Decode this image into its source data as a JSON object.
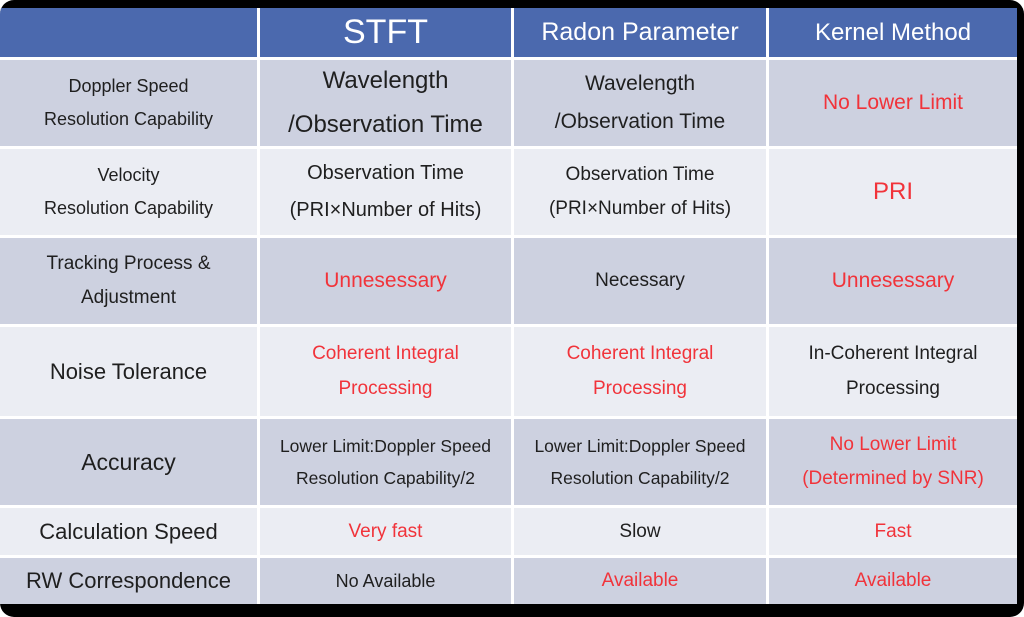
{
  "colors": {
    "header_blue": "#4b69ae",
    "band_dark": "#cdd1e0",
    "band_light": "#ebedf3",
    "text_dark": "#1f1f1f",
    "accent_red": "#f1333a",
    "frame_black": "#000000"
  },
  "header": {
    "corner": "",
    "stft": "STFT",
    "radon": "Radon Parameter",
    "kernel": "Kernel Method"
  },
  "rows": [
    {
      "label": [
        "Doppler Speed",
        "Resolution Capability"
      ],
      "stft": {
        "lines": [
          "Wavelength",
          "/Observation Time"
        ],
        "tone": "dark"
      },
      "radon": {
        "lines": [
          "Wavelength",
          "/Observation Time"
        ],
        "tone": "dark"
      },
      "kernel": {
        "lines": [
          "No Lower Limit"
        ],
        "tone": "red"
      }
    },
    {
      "label": [
        "Velocity",
        "Resolution Capability"
      ],
      "stft": {
        "lines": [
          "Observation Time",
          "(PRI×Number of Hits)"
        ],
        "tone": "dark"
      },
      "radon": {
        "lines": [
          "Observation Time",
          "(PRI×Number of Hits)"
        ],
        "tone": "dark"
      },
      "kernel": {
        "lines": [
          "PRI"
        ],
        "tone": "red"
      }
    },
    {
      "label": [
        "Tracking Process &",
        "Adjustment"
      ],
      "stft": {
        "lines": [
          "Unnesessary"
        ],
        "tone": "red"
      },
      "radon": {
        "lines": [
          "Necessary"
        ],
        "tone": "dark"
      },
      "kernel": {
        "lines": [
          "Unnesessary"
        ],
        "tone": "red"
      }
    },
    {
      "label": [
        "Noise Tolerance"
      ],
      "stft": {
        "lines": [
          "Coherent Integral",
          "Processing"
        ],
        "tone": "red"
      },
      "radon": {
        "lines": [
          "Coherent Integral",
          "Processing"
        ],
        "tone": "red"
      },
      "kernel": {
        "lines": [
          "In-Coherent Integral",
          "Processing"
        ],
        "tone": "dark"
      }
    },
    {
      "label": [
        "Accuracy"
      ],
      "stft": {
        "lines": [
          "Lower Limit:Doppler Speed",
          "Resolution Capability/2"
        ],
        "tone": "dark"
      },
      "radon": {
        "lines": [
          "Lower Limit:Doppler Speed",
          "Resolution Capability/2"
        ],
        "tone": "dark"
      },
      "kernel": {
        "lines": [
          "No Lower Limit",
          "(Determined by SNR)"
        ],
        "tone": "red"
      }
    },
    {
      "label": [
        "Calculation Speed"
      ],
      "stft": {
        "lines": [
          "Very fast"
        ],
        "tone": "red"
      },
      "radon": {
        "lines": [
          "Slow"
        ],
        "tone": "dark"
      },
      "kernel": {
        "lines": [
          "Fast"
        ],
        "tone": "red"
      }
    },
    {
      "label": [
        "RW Correspondence"
      ],
      "stft": {
        "lines": [
          "No Available"
        ],
        "tone": "dark"
      },
      "radon": {
        "lines": [
          "Available"
        ],
        "tone": "red"
      },
      "kernel": {
        "lines": [
          "Available"
        ],
        "tone": "red"
      }
    }
  ]
}
